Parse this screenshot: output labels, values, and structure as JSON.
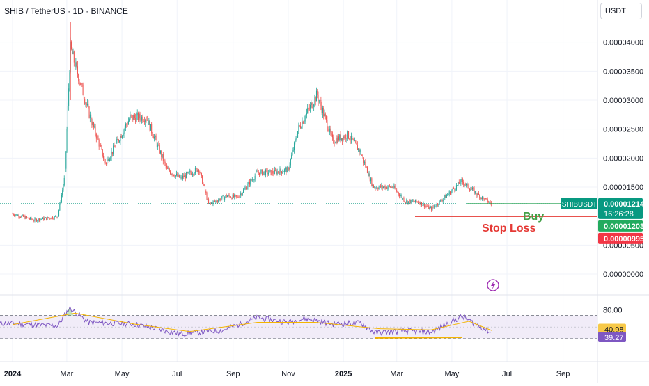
{
  "header": {
    "symbol_title": "SHIB / TetherUS · 1D · BINANCE",
    "currency_button": "USDT"
  },
  "colors": {
    "up": "#26a69a",
    "down": "#ef5350",
    "buy_line": "#1b9e4b",
    "stop_line": "#e53935",
    "rsi_line": "#7e57c2",
    "rsi_ma": "#f4b400",
    "rsi_band_fill": "#ede7f6"
  },
  "chart_data": [
    {
      "type": "line",
      "title": "SHIB / TetherUS · 1D · BINANCE",
      "y_axis_ticks": [
        "0.00004000",
        "0.00003500",
        "0.00003000",
        "0.00002500",
        "0.00002000",
        "0.00001500",
        "0.00000500",
        "0.00000000"
      ],
      "ylim": [
        0,
        4.38e-05
      ],
      "x_axis_labels": [
        "2024",
        "Mar",
        "May",
        "Jul",
        "Sep",
        "Nov",
        "2025",
        "Mar",
        "May",
        "Jul",
        "Sep"
      ],
      "series": [
        {
          "name": "SHIBUSDT",
          "x": [
            "2024-01-01",
            "2024-01-25",
            "2024-02-20",
            "2024-02-28",
            "2024-03-05",
            "2024-03-25",
            "2024-04-13",
            "2024-05-10",
            "2024-05-28",
            "2024-06-20",
            "2024-07-05",
            "2024-07-25",
            "2024-08-05",
            "2024-08-25",
            "2024-09-06",
            "2024-09-28",
            "2024-10-15",
            "2024-11-01",
            "2024-11-12",
            "2024-12-03",
            "2024-12-20",
            "2025-01-06",
            "2025-01-20",
            "2025-02-03",
            "2025-02-25",
            "2025-03-11",
            "2025-03-25",
            "2025-04-08",
            "2025-04-25",
            "2025-05-12",
            "2025-05-31",
            "2025-06-14"
          ],
          "values": [
            1.04e-05,
            9.3e-06,
            9.9e-06,
            1.7e-05,
            3.9e-05,
            2.8e-05,
            1.9e-05,
            2.7e-05,
            2.7e-05,
            1.8e-05,
            1.65e-05,
            1.82e-05,
            1.2e-05,
            1.35e-05,
            1.32e-05,
            1.75e-05,
            1.75e-05,
            1.8e-05,
            2.5e-05,
            3.1e-05,
            2.3e-05,
            2.4e-05,
            2.1e-05,
            1.5e-05,
            1.5e-05,
            1.25e-05,
            1.25e-05,
            1.12e-05,
            1.35e-05,
            1.6e-05,
            1.35e-05,
            1.21e-05
          ]
        }
      ],
      "price_labels": [
        {
          "symbol": "SHIBUSDT",
          "value": "0.00001214",
          "countdown": "16:26:28",
          "color": "#089981"
        },
        {
          "value": "0.00001203",
          "color": "#22ab5e"
        },
        {
          "value": "0.00000995",
          "color": "#f23645"
        }
      ],
      "annotations": [
        {
          "text": "Buy",
          "color": "#43a047",
          "level": 1.21e-05
        },
        {
          "text": "Stop Loss",
          "color": "#e53935",
          "level": 9.95e-06
        }
      ]
    },
    {
      "type": "line",
      "ylim": [
        20,
        90
      ],
      "y_axis_ticks": [
        "80.00"
      ],
      "guide_levels": [
        70,
        50,
        30
      ],
      "value_labels": [
        {
          "value": "40.98",
          "color": "#f7c948",
          "text_color": "#131722"
        },
        {
          "value": "39.27",
          "color": "#7e57c2",
          "text_color": "#ffffff"
        }
      ],
      "series": [
        {
          "name": "RSI",
          "x": [
            "2024-01-01",
            "2024-02-20",
            "2024-03-04",
            "2024-03-25",
            "2024-05-15",
            "2024-07-05",
            "2024-08-20",
            "2024-09-28",
            "2024-11-01",
            "2024-11-20",
            "2024-12-20",
            "2025-01-20",
            "2025-02-05",
            "2025-03-10",
            "2025-04-08",
            "2025-05-12",
            "2025-06-14"
          ],
          "values": [
            56,
            52,
            83,
            58,
            55,
            38,
            44,
            66,
            58,
            65,
            55,
            57,
            40,
            43,
            41,
            68,
            40
          ]
        },
        {
          "name": "RSI-based MA",
          "x": [
            "2024-01-01",
            "2024-03-10",
            "2024-05-15",
            "2024-07-15",
            "2024-09-28",
            "2024-12-01",
            "2025-02-10",
            "2025-04-08",
            "2025-05-20",
            "2025-06-14"
          ],
          "values": [
            54,
            74,
            55,
            42,
            58,
            58,
            47,
            45,
            60,
            44
          ]
        }
      ]
    }
  ]
}
